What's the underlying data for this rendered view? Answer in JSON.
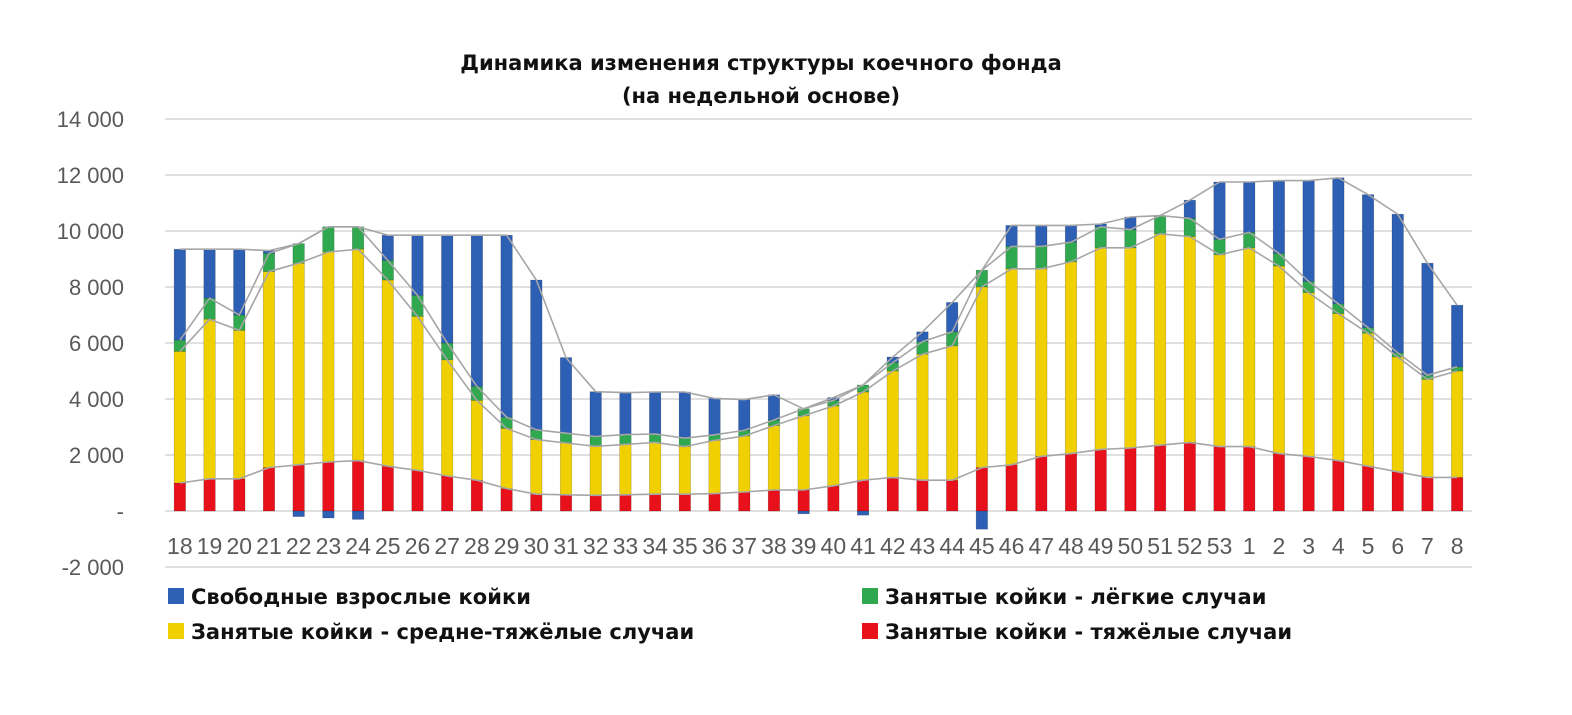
{
  "chart_data": {
    "type": "bar",
    "stacked": true,
    "title": "Динамика изменения структуры коечного фонда",
    "subtitle": "(на недельной основе)",
    "ylim": [
      -2000,
      14000
    ],
    "yticks": [
      14000,
      12000,
      10000,
      8000,
      6000,
      4000,
      2000,
      0,
      -2000
    ],
    "ytick_labels": [
      "14 000",
      "12 000",
      "10 000",
      "8 000",
      "6 000",
      "4 000",
      "2 000",
      "-",
      "-2 000"
    ],
    "grid": true,
    "legend_position": "bottom",
    "categories": [
      "18",
      "19",
      "20",
      "21",
      "22",
      "23",
      "24",
      "25",
      "26",
      "27",
      "28",
      "29",
      "30",
      "31",
      "32",
      "33",
      "34",
      "35",
      "36",
      "37",
      "38",
      "39",
      "40",
      "41",
      "42",
      "43",
      "44",
      "45",
      "46",
      "47",
      "48",
      "49",
      "50",
      "51",
      "52",
      "53",
      "1",
      "2",
      "3",
      "4",
      "5",
      "6",
      "7",
      "8"
    ],
    "series": [
      {
        "name": "Занятые койки - тяжёлые случаи",
        "color": "#e8101a",
        "values": [
          1000,
          1150,
          1150,
          1550,
          1650,
          1750,
          1800,
          1600,
          1450,
          1250,
          1100,
          800,
          600,
          580,
          560,
          580,
          600,
          600,
          620,
          680,
          750,
          750,
          900,
          1100,
          1200,
          1100,
          1100,
          1550,
          1650,
          1950,
          2050,
          2200,
          2250,
          2350,
          2450,
          2300,
          2300,
          2050,
          1950,
          1800,
          1600,
          1400,
          1200,
          1200
        ]
      },
      {
        "name": "Занятые койки - средне-тяжёлые случаи",
        "color": "#f0d000",
        "values": [
          4700,
          5700,
          5300,
          7000,
          7200,
          7500,
          7550,
          6650,
          5500,
          4150,
          2850,
          2150,
          1950,
          1850,
          1750,
          1800,
          1850,
          1700,
          1900,
          2000,
          2300,
          2650,
          2850,
          3150,
          3800,
          4500,
          4800,
          6450,
          7000,
          6700,
          6850,
          7200,
          7150,
          7550,
          7350,
          6850,
          7100,
          6700,
          5850,
          5250,
          4750,
          4100,
          3500,
          3800
        ]
      },
      {
        "name": "Занятые койки - лёгкие случаи",
        "color": "#2fa84f",
        "values": [
          400,
          750,
          550,
          650,
          700,
          900,
          800,
          700,
          750,
          600,
          500,
          400,
          350,
          350,
          350,
          350,
          300,
          300,
          200,
          200,
          200,
          250,
          200,
          250,
          300,
          450,
          500,
          600,
          800,
          800,
          700,
          750,
          650,
          650,
          650,
          550,
          550,
          450,
          400,
          350,
          200,
          150,
          150,
          150
        ]
      },
      {
        "name": "Свободные взрослые койки",
        "color": "#2d5fb5",
        "values": [
          3250,
          1750,
          2350,
          100,
          -200,
          -250,
          -300,
          900,
          2150,
          3850,
          5400,
          6500,
          5350,
          2700,
          1600,
          1500,
          1500,
          1650,
          1300,
          1100,
          900,
          -100,
          100,
          -150,
          200,
          350,
          1050,
          -650,
          750,
          750,
          600,
          100,
          450,
          0,
          650,
          2050,
          1800,
          2600,
          3600,
          4500,
          4750,
          4950,
          4000,
          2200
        ]
      }
    ]
  },
  "legend": [
    {
      "label": "Свободные взрослые койки",
      "color": "#2d5fb5"
    },
    {
      "label": "Занятые койки - лёгкие случаи",
      "color": "#2fa84f"
    },
    {
      "label": "Занятые койки - средне-тяжёлые случаи",
      "color": "#f0d000"
    },
    {
      "label": "Занятые койки - тяжёлые случаи",
      "color": "#e8101a"
    }
  ]
}
